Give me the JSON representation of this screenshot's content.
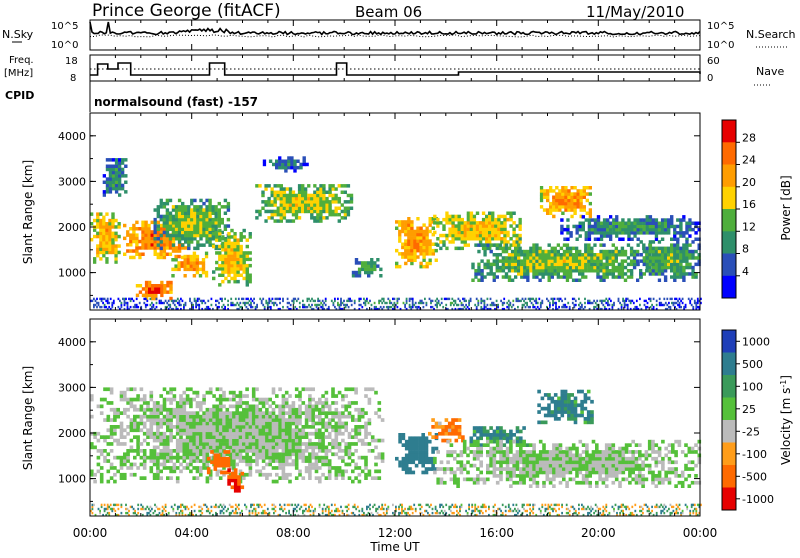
{
  "header": {
    "station": "Prince George (fitACF)",
    "beam": "Beam 06",
    "date": "11/May/2010"
  },
  "summary": {
    "nsky_label": "N.Sky",
    "nsky_ticks": [
      "10^5",
      "10^0"
    ],
    "nsearch_label": "N.Search",
    "nsearch_ticks": [
      "10^5",
      "10^0"
    ],
    "freq_label": "Freq.",
    "freq_unit": "[MHz]",
    "freq_ticks": [
      "18",
      "8"
    ],
    "nave_label": "Nave",
    "nave_ticks": [
      "60",
      "0"
    ],
    "cpid_label": "CPID",
    "cpid_text": "normalsound (fast) -157"
  },
  "axes": {
    "time_labels": [
      "00:00",
      "04:00",
      "08:00",
      "12:00",
      "16:00",
      "20:00",
      "00:00"
    ],
    "time_axis_title": "Time UT",
    "range_ticks": [
      "1000",
      "2000",
      "3000",
      "4000"
    ],
    "range_axis_title": "Slant Range [km]"
  },
  "power_scale": {
    "title": "Power [dB]",
    "ticks": [
      "28",
      "24",
      "20",
      "16",
      "12",
      "8",
      "4"
    ],
    "colors": [
      "#e60000",
      "#ff6a00",
      "#ff9d00",
      "#ffd200",
      "#4fae3c",
      "#2e8f6a",
      "#2a4fb8",
      "#0000ff"
    ]
  },
  "velocity_scale": {
    "title": "Velocity [m s",
    "title_sup": "-1",
    "title_end": "]",
    "ticks": [
      "1000",
      "500",
      "100",
      "25",
      "-25",
      "-100",
      "-500",
      "-1000"
    ],
    "colors": [
      "#1f3fb8",
      "#2e7d8f",
      "#3a9a5a",
      "#55c03a",
      "#bbbbbb",
      "#ff9d1a",
      "#ff6a00",
      "#e60000"
    ]
  },
  "chart_data": {
    "type": "heatmap",
    "x_range_hours": [
      0,
      24
    ],
    "y_range_km": [
      180,
      4500
    ],
    "power_range_db": [
      0,
      32
    ],
    "velocity_range_ms": [
      -1000,
      1000
    ],
    "power_regions": [
      {
        "t0": 0.0,
        "t1": 1.1,
        "r0": 1200,
        "r1": 2300,
        "power": 18
      },
      {
        "t0": 0.5,
        "t1": 1.4,
        "r0": 2600,
        "r1": 3500,
        "power": 8
      },
      {
        "t0": 1.3,
        "t1": 3.8,
        "r0": 1300,
        "r1": 2100,
        "power": 22
      },
      {
        "t0": 1.8,
        "t1": 3.2,
        "r0": 400,
        "r1": 800,
        "power": 24
      },
      {
        "t0": 2.5,
        "t1": 5.5,
        "r0": 1500,
        "r1": 2600,
        "power": 12
      },
      {
        "t0": 3.2,
        "t1": 4.6,
        "r0": 900,
        "r1": 1400,
        "power": 20
      },
      {
        "t0": 4.8,
        "t1": 6.3,
        "r0": 700,
        "r1": 1900,
        "power": 16
      },
      {
        "t0": 6.5,
        "t1": 10.3,
        "r0": 2100,
        "r1": 2900,
        "power": 14
      },
      {
        "t0": 6.8,
        "t1": 8.5,
        "r0": 3200,
        "r1": 3500,
        "power": 6
      },
      {
        "t0": 10.3,
        "t1": 11.4,
        "r0": 900,
        "r1": 1300,
        "power": 10
      },
      {
        "t0": 12.0,
        "t1": 13.6,
        "r0": 1100,
        "r1": 2200,
        "power": 20
      },
      {
        "t0": 13.5,
        "t1": 17.0,
        "r0": 1500,
        "r1": 2300,
        "power": 16
      },
      {
        "t0": 15.0,
        "t1": 22.0,
        "r0": 800,
        "r1": 1600,
        "power": 12
      },
      {
        "t0": 17.7,
        "t1": 19.7,
        "r0": 2200,
        "r1": 2900,
        "power": 20
      },
      {
        "t0": 18.5,
        "t1": 24.0,
        "r0": 1700,
        "r1": 2200,
        "power": 8
      },
      {
        "t0": 21.5,
        "t1": 24.0,
        "r0": 800,
        "r1": 1700,
        "power": 10
      },
      {
        "t0": 0.0,
        "t1": 24.0,
        "r0": 180,
        "r1": 450,
        "power": 6
      }
    ],
    "velocity_regions": [
      {
        "t0": 0.0,
        "t1": 11.5,
        "r0": 900,
        "r1": 3000,
        "velocity": 0
      },
      {
        "t0": 4.6,
        "t1": 5.5,
        "r0": 1100,
        "r1": 1600,
        "velocity": -300
      },
      {
        "t0": 5.4,
        "t1": 6.0,
        "r0": 700,
        "r1": 1200,
        "velocity": -500
      },
      {
        "t0": 12.0,
        "t1": 13.6,
        "r0": 1100,
        "r1": 2000,
        "velocity": 250
      },
      {
        "t0": 13.3,
        "t1": 14.8,
        "r0": 1800,
        "r1": 2300,
        "velocity": -150
      },
      {
        "t0": 14.8,
        "t1": 17.2,
        "r0": 1700,
        "r1": 2100,
        "velocity": 150
      },
      {
        "t0": 17.6,
        "t1": 19.8,
        "r0": 2200,
        "r1": 2900,
        "velocity": 150
      },
      {
        "t0": 13.5,
        "t1": 24.0,
        "r0": 800,
        "r1": 1800,
        "velocity": 0
      },
      {
        "t0": 0.0,
        "t1": 24.0,
        "r0": 180,
        "r1": 420,
        "velocity": 30
      }
    ]
  }
}
